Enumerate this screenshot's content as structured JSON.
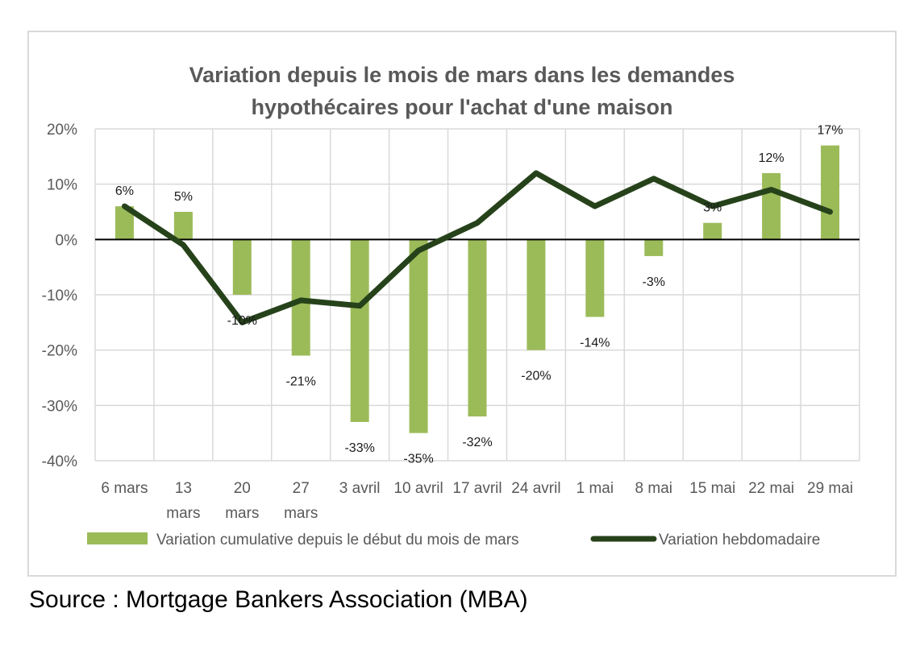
{
  "source_note": "Source : Mortgage Bankers Association (MBA)",
  "colors": {
    "bar": "#9bbb59",
    "line": "#26421a",
    "grid": "#d9d9d9",
    "axis_text": "#595959",
    "zero_line": "#000000"
  },
  "chart_data": {
    "type": "bar",
    "title": [
      "Variation depuis le mois de mars dans les demandes",
      "hypothécaires pour l'achat d'une maison"
    ],
    "categories": [
      [
        "6 mars"
      ],
      [
        "13",
        "mars"
      ],
      [
        "20",
        "mars"
      ],
      [
        "27",
        "mars"
      ],
      [
        "3 avril"
      ],
      [
        "10 avril"
      ],
      [
        "17 avril"
      ],
      [
        "24 avril"
      ],
      [
        "1 mai"
      ],
      [
        "8 mai"
      ],
      [
        "15 mai"
      ],
      [
        "22 mai"
      ],
      [
        "29 mai"
      ]
    ],
    "ylim": [
      -40,
      20
    ],
    "yticks": [
      20,
      10,
      0,
      -10,
      -20,
      -30,
      -40
    ],
    "ytick_labels": [
      "20%",
      "10%",
      "0%",
      "-10%",
      "-20%",
      "-30%",
      "-40%"
    ],
    "grid": "vertical and horizontal",
    "legend_position": "bottom",
    "series": [
      {
        "name": "Variation cumulative depuis le début du mois de mars",
        "kind": "bar",
        "values": [
          6,
          5,
          -10,
          -21,
          -33,
          -35,
          -32,
          -20,
          -14,
          -3,
          3,
          12,
          17
        ],
        "labels": [
          "6%",
          "5%",
          "-10%",
          "-21%",
          "-33%",
          "-35%",
          "-32%",
          "-20%",
          "-14%",
          "-3%",
          "3%",
          "12%",
          "17%"
        ]
      },
      {
        "name": "Variation hebdomadaire",
        "kind": "line",
        "values": [
          6,
          -1,
          -15,
          -11,
          -12,
          -2,
          3,
          12,
          6,
          11,
          6,
          9,
          5
        ]
      }
    ]
  }
}
